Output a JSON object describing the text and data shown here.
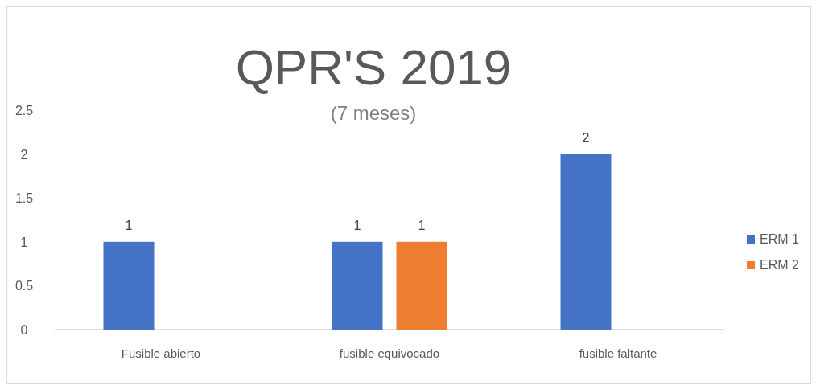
{
  "chart_data": {
    "type": "bar",
    "title": "QPR'S 2019",
    "subtitle": "(7 meses)",
    "categories": [
      "Fusible abierto",
      "fusible equivocado",
      "fusible faltante"
    ],
    "series": [
      {
        "name": "ERM 1",
        "color": "#4472c4",
        "values": [
          1,
          1,
          2
        ]
      },
      {
        "name": "ERM 2",
        "color": "#ed7d31",
        "values": [
          null,
          1,
          null
        ]
      }
    ],
    "ylim": [
      0,
      2.5
    ],
    "yticks": [
      0,
      0.5,
      1,
      1.5,
      2,
      2.5
    ],
    "grid": false,
    "legend": "right",
    "data_labels": true
  }
}
